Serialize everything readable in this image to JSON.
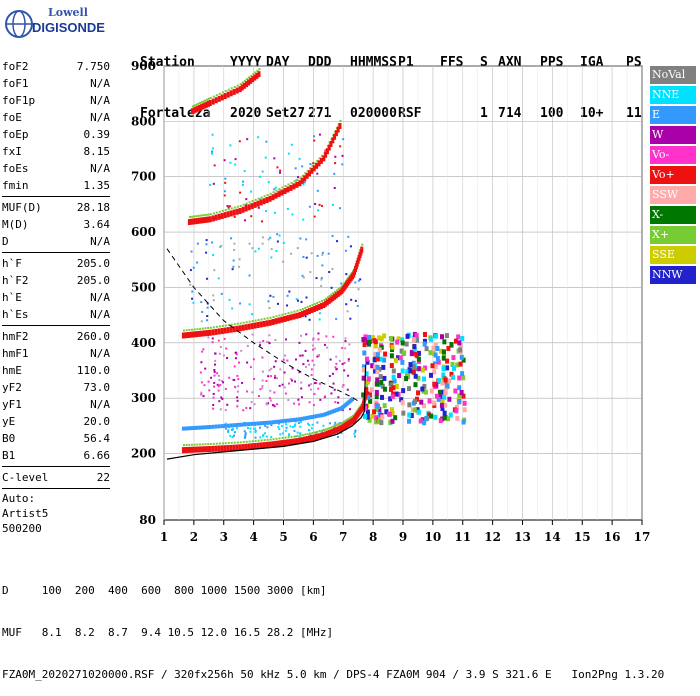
{
  "logo": {
    "line1": "Lowell",
    "line2": "DIGISONDE"
  },
  "header": {
    "labels": [
      "Station",
      "YYYY",
      "DAY",
      "DDD",
      "HHMMSS",
      "P1",
      "FFS",
      "S",
      "AXN",
      "PPS",
      "IGA",
      "PS"
    ],
    "values": [
      "Fortaleza",
      "2020",
      "Set27",
      "271",
      "020000",
      "RSF",
      "",
      "1",
      "714",
      "100",
      "10+",
      "11"
    ]
  },
  "params": [
    {
      "group": [
        [
          "foF2",
          "7.750"
        ],
        [
          "foF1",
          "N/A"
        ],
        [
          "foF1p",
          "N/A"
        ],
        [
          "foE",
          "N/A"
        ],
        [
          "foEp",
          "0.39"
        ],
        [
          "fxI",
          "8.15"
        ],
        [
          "foEs",
          "N/A"
        ],
        [
          "fmin",
          "1.35"
        ]
      ]
    },
    {
      "group": [
        [
          "MUF(D)",
          "28.18"
        ],
        [
          "M(D)",
          "3.64"
        ],
        [
          "D",
          "N/A"
        ]
      ]
    },
    {
      "group": [
        [
          "h`F",
          "205.0"
        ],
        [
          "h`F2",
          "205.0"
        ],
        [
          "h`E",
          "N/A"
        ],
        [
          "h`Es",
          "N/A"
        ]
      ]
    },
    {
      "group": [
        [
          "hmF2",
          "260.0"
        ],
        [
          "hmF1",
          "N/A"
        ],
        [
          "hmE",
          "110.0"
        ],
        [
          "yF2",
          "73.0"
        ],
        [
          "yF1",
          "N/A"
        ],
        [
          "yE",
          "20.0"
        ],
        [
          "B0",
          "56.4"
        ],
        [
          "B1",
          "6.66"
        ]
      ]
    },
    {
      "group": [
        [
          "C-level",
          "22"
        ]
      ]
    }
  ],
  "auto": [
    "Auto:",
    "Artist5",
    "500200"
  ],
  "legend": [
    {
      "label": "NoVal",
      "color": "#808080"
    },
    {
      "label": "NNE",
      "color": "#00e0ff"
    },
    {
      "label": "E",
      "color": "#3399ff"
    },
    {
      "label": "W",
      "color": "#aa00aa"
    },
    {
      "label": "Vo-",
      "color": "#ff33cc"
    },
    {
      "label": "Vo+",
      "color": "#ee1111"
    },
    {
      "label": "SSW",
      "color": "#ffaaaa"
    },
    {
      "label": "X-",
      "color": "#007700"
    },
    {
      "label": "X+",
      "color": "#77cc33"
    },
    {
      "label": "SSE",
      "color": "#cccc00"
    },
    {
      "label": "NNW",
      "color": "#2222cc"
    }
  ],
  "chart_data": {
    "type": "scatter",
    "xlim": [
      1,
      17
    ],
    "ylim": [
      80,
      900
    ],
    "xticks": [
      1,
      2,
      3,
      4,
      5,
      6,
      7,
      8,
      9,
      10,
      11,
      12,
      13,
      14,
      15,
      16,
      17
    ],
    "yticks": [
      80,
      200,
      300,
      400,
      500,
      600,
      700,
      800,
      900
    ],
    "grid": true,
    "traces": [
      {
        "name": "Vo+",
        "color": "#ee1111",
        "x": [
          1.6,
          2.5,
          3.5,
          4.5,
          5.5,
          6.3,
          6.9,
          7.3,
          7.6,
          7.75
        ],
        "y": [
          208,
          210,
          213,
          218,
          225,
          235,
          248,
          262,
          285,
          320
        ]
      },
      {
        "name": "E",
        "color": "#3399ff",
        "x": [
          1.6,
          2.5,
          3.5,
          4.5,
          5.5,
          6.3,
          6.9,
          7.3
        ],
        "y": [
          245,
          248,
          252,
          256,
          262,
          270,
          282,
          300
        ]
      },
      {
        "name": "Vo+ 2-hop",
        "color": "#ee1111",
        "x": [
          1.6,
          2.5,
          3.5,
          4.5,
          5.5,
          6.3,
          6.9,
          7.3,
          7.6
        ],
        "y": [
          415,
          420,
          428,
          438,
          452,
          470,
          495,
          525,
          575
        ]
      },
      {
        "name": "Vo+ 3-hop",
        "color": "#ee1111",
        "x": [
          1.8,
          2.5,
          3.5,
          4.5,
          5.5,
          6.3,
          6.9
        ],
        "y": [
          620,
          625,
          640,
          662,
          690,
          735,
          800
        ]
      },
      {
        "name": "Vo+ 4-hop",
        "color": "#ee1111",
        "x": [
          1.9,
          2.5,
          3.5,
          4.2
        ],
        "y": [
          820,
          835,
          860,
          890
        ]
      }
    ]
  },
  "profile": {
    "x": [
      1.1,
      2,
      3,
      4,
      5,
      6,
      6.8,
      7.3,
      7.6,
      7.7
    ],
    "y": [
      190,
      198,
      203,
      208,
      213,
      222,
      235,
      250,
      265,
      275
    ]
  },
  "dashed": {
    "x": [
      1.1,
      2,
      3,
      4,
      5,
      6,
      7,
      7.5
    ],
    "y": [
      570,
      500,
      440,
      400,
      365,
      335,
      310,
      295
    ]
  },
  "footer": [
    "D     100  200  400  600  800 1000 1500 3000 [km]",
    "MUF   8.1  8.2  8.7  9.4 10.5 12.0 16.5 28.2 [MHz]",
    "FZA0M_2020271020000.RSF / 320fx256h 50 kHz 5.0 km / DPS-4 FZA0M 904 / 3.9 S 321.6 E   Ion2Png 1.3.20"
  ]
}
